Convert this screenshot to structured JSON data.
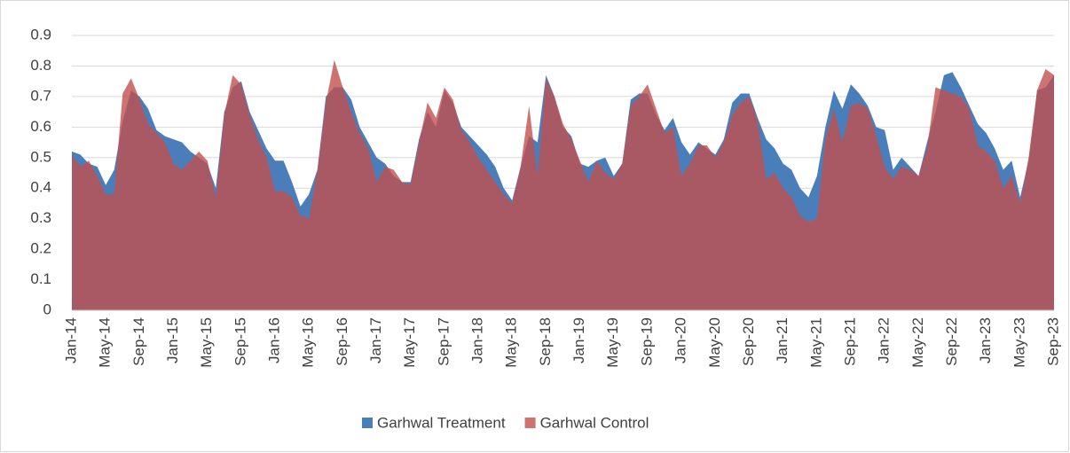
{
  "chart_data": {
    "type": "area",
    "categories": [
      "Jan-14",
      null,
      null,
      null,
      "May-14",
      null,
      null,
      null,
      "Sep-14",
      null,
      null,
      null,
      "Jan-15",
      null,
      null,
      null,
      "May-15",
      null,
      null,
      null,
      "Sep-15",
      null,
      null,
      null,
      "Jan-16",
      null,
      null,
      null,
      "May-16",
      null,
      null,
      null,
      "Sep-16",
      null,
      null,
      null,
      "Jan-17",
      null,
      null,
      null,
      "May-17",
      null,
      null,
      null,
      "Sep-17",
      null,
      null,
      null,
      "Jan-18",
      null,
      null,
      null,
      "May-18",
      null,
      null,
      null,
      "Sep-18",
      null,
      null,
      null,
      "Jan-19",
      null,
      null,
      null,
      "May-19",
      null,
      null,
      null,
      "Sep-19",
      null,
      null,
      null,
      "Jan-20",
      null,
      null,
      null,
      "May-20",
      null,
      null,
      null,
      "Sep-20",
      null,
      null,
      null,
      "Jan-21",
      null,
      null,
      null,
      "May-21",
      null,
      null,
      null,
      "Sep-21",
      null,
      null,
      null,
      "Jan-22",
      null,
      null,
      null,
      "May-22",
      null,
      null,
      null,
      "Sep-22",
      null,
      null,
      null,
      "Jan-23",
      null,
      null,
      null,
      "May-23",
      null,
      null,
      null,
      "Sep-23"
    ],
    "series": [
      {
        "name": "Garhwal Treatment",
        "color": "#4a7ebb",
        "values": [
          0.52,
          0.51,
          0.48,
          0.47,
          0.41,
          0.46,
          0.62,
          0.72,
          0.7,
          0.66,
          0.59,
          0.57,
          0.56,
          0.55,
          0.52,
          0.5,
          0.48,
          0.4,
          0.65,
          0.73,
          0.75,
          0.65,
          0.59,
          0.53,
          0.49,
          0.49,
          0.42,
          0.34,
          0.38,
          0.46,
          0.7,
          0.73,
          0.73,
          0.69,
          0.6,
          0.55,
          0.5,
          0.48,
          0.44,
          0.42,
          0.42,
          0.56,
          0.65,
          0.6,
          0.72,
          0.68,
          0.6,
          0.57,
          0.54,
          0.51,
          0.47,
          0.4,
          0.36,
          0.47,
          0.57,
          0.55,
          0.77,
          0.7,
          0.6,
          0.57,
          0.48,
          0.47,
          0.49,
          0.5,
          0.44,
          0.48,
          0.69,
          0.71,
          0.71,
          0.64,
          0.59,
          0.63,
          0.55,
          0.51,
          0.55,
          0.53,
          0.51,
          0.56,
          0.68,
          0.71,
          0.71,
          0.63,
          0.56,
          0.53,
          0.48,
          0.46,
          0.4,
          0.37,
          0.44,
          0.6,
          0.72,
          0.66,
          0.74,
          0.71,
          0.67,
          0.6,
          0.59,
          0.46,
          0.5,
          0.47,
          0.44,
          0.55,
          0.65,
          0.77,
          0.78,
          0.73,
          0.67,
          0.61,
          0.58,
          0.53,
          0.46,
          0.49,
          0.37,
          0.49,
          0.72,
          0.73,
          0.77
        ]
      },
      {
        "name": "Garhwal Control",
        "color": "#c0504d",
        "values": [
          0.51,
          0.47,
          0.49,
          0.44,
          0.38,
          0.38,
          0.71,
          0.76,
          0.69,
          0.61,
          0.58,
          0.55,
          0.48,
          0.46,
          0.49,
          0.52,
          0.49,
          0.37,
          0.64,
          0.77,
          0.74,
          0.64,
          0.56,
          0.5,
          0.39,
          0.39,
          0.37,
          0.31,
          0.3,
          0.46,
          0.68,
          0.82,
          0.73,
          0.65,
          0.58,
          0.53,
          0.42,
          0.47,
          0.46,
          0.42,
          0.41,
          0.55,
          0.68,
          0.63,
          0.73,
          0.69,
          0.59,
          0.55,
          0.5,
          0.46,
          0.42,
          0.38,
          0.35,
          0.47,
          0.67,
          0.44,
          0.76,
          0.7,
          0.61,
          0.56,
          0.49,
          0.42,
          0.49,
          0.45,
          0.43,
          0.48,
          0.67,
          0.7,
          0.74,
          0.66,
          0.58,
          0.6,
          0.44,
          0.48,
          0.54,
          0.54,
          0.5,
          0.55,
          0.64,
          0.68,
          0.7,
          0.62,
          0.43,
          0.45,
          0.4,
          0.37,
          0.31,
          0.29,
          0.3,
          0.56,
          0.66,
          0.55,
          0.67,
          0.68,
          0.66,
          0.57,
          0.47,
          0.43,
          0.47,
          0.46,
          0.44,
          0.53,
          0.73,
          0.72,
          0.71,
          0.7,
          0.66,
          0.54,
          0.52,
          0.49,
          0.4,
          0.44,
          0.35,
          0.5,
          0.72,
          0.79,
          0.77
        ]
      }
    ],
    "ylim": [
      0,
      0.9
    ],
    "yticks": [
      0,
      0.1,
      0.2,
      0.3,
      0.4,
      0.5,
      0.6,
      0.7,
      0.8,
      0.9
    ],
    "grid": true,
    "legend": "bottom"
  }
}
